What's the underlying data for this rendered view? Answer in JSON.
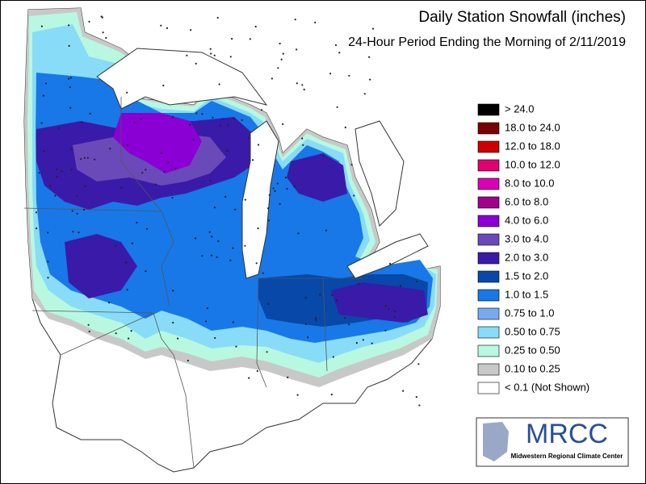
{
  "header": {
    "title": "Daily Station Snowfall (inches)",
    "subtitle": "24-Hour Period Ending the Morning of 2/11/2019"
  },
  "legend": [
    {
      "label": "> 24.0",
      "color": "#000000"
    },
    {
      "label": "18.0 to 24.0",
      "color": "#7a0000"
    },
    {
      "label": "12.0 to 18.0",
      "color": "#cc0000"
    },
    {
      "label": "10.0 to 12.0",
      "color": "#e0006f"
    },
    {
      "label": "8.0 to 10.0",
      "color": "#d800b4"
    },
    {
      "label": "6.0 to 8.0",
      "color": "#a0008c"
    },
    {
      "label": "4.0 to 6.0",
      "color": "#8a00d4"
    },
    {
      "label": "3.0 to 4.0",
      "color": "#6a4ab8"
    },
    {
      "label": "2.0 to 3.0",
      "color": "#3a1aa8"
    },
    {
      "label": "1.5 to 2.0",
      "color": "#0848a8"
    },
    {
      "label": "1.0 to 1.5",
      "color": "#1878e8"
    },
    {
      "label": "0.75 to 1.0",
      "color": "#78aaf0"
    },
    {
      "label": "0.50 to 0.75",
      "color": "#88dcf8"
    },
    {
      "label": "0.25 to 0.50",
      "color": "#b8f8e0"
    },
    {
      "label": "0.10 to 0.25",
      "color": "#c8c8c8"
    },
    {
      "label": "< 0.1 (Not Shown)",
      "color": "#ffffff"
    }
  ],
  "logo": {
    "name": "MRCC",
    "subtitle": "Midwestern Regional Climate Center"
  }
}
